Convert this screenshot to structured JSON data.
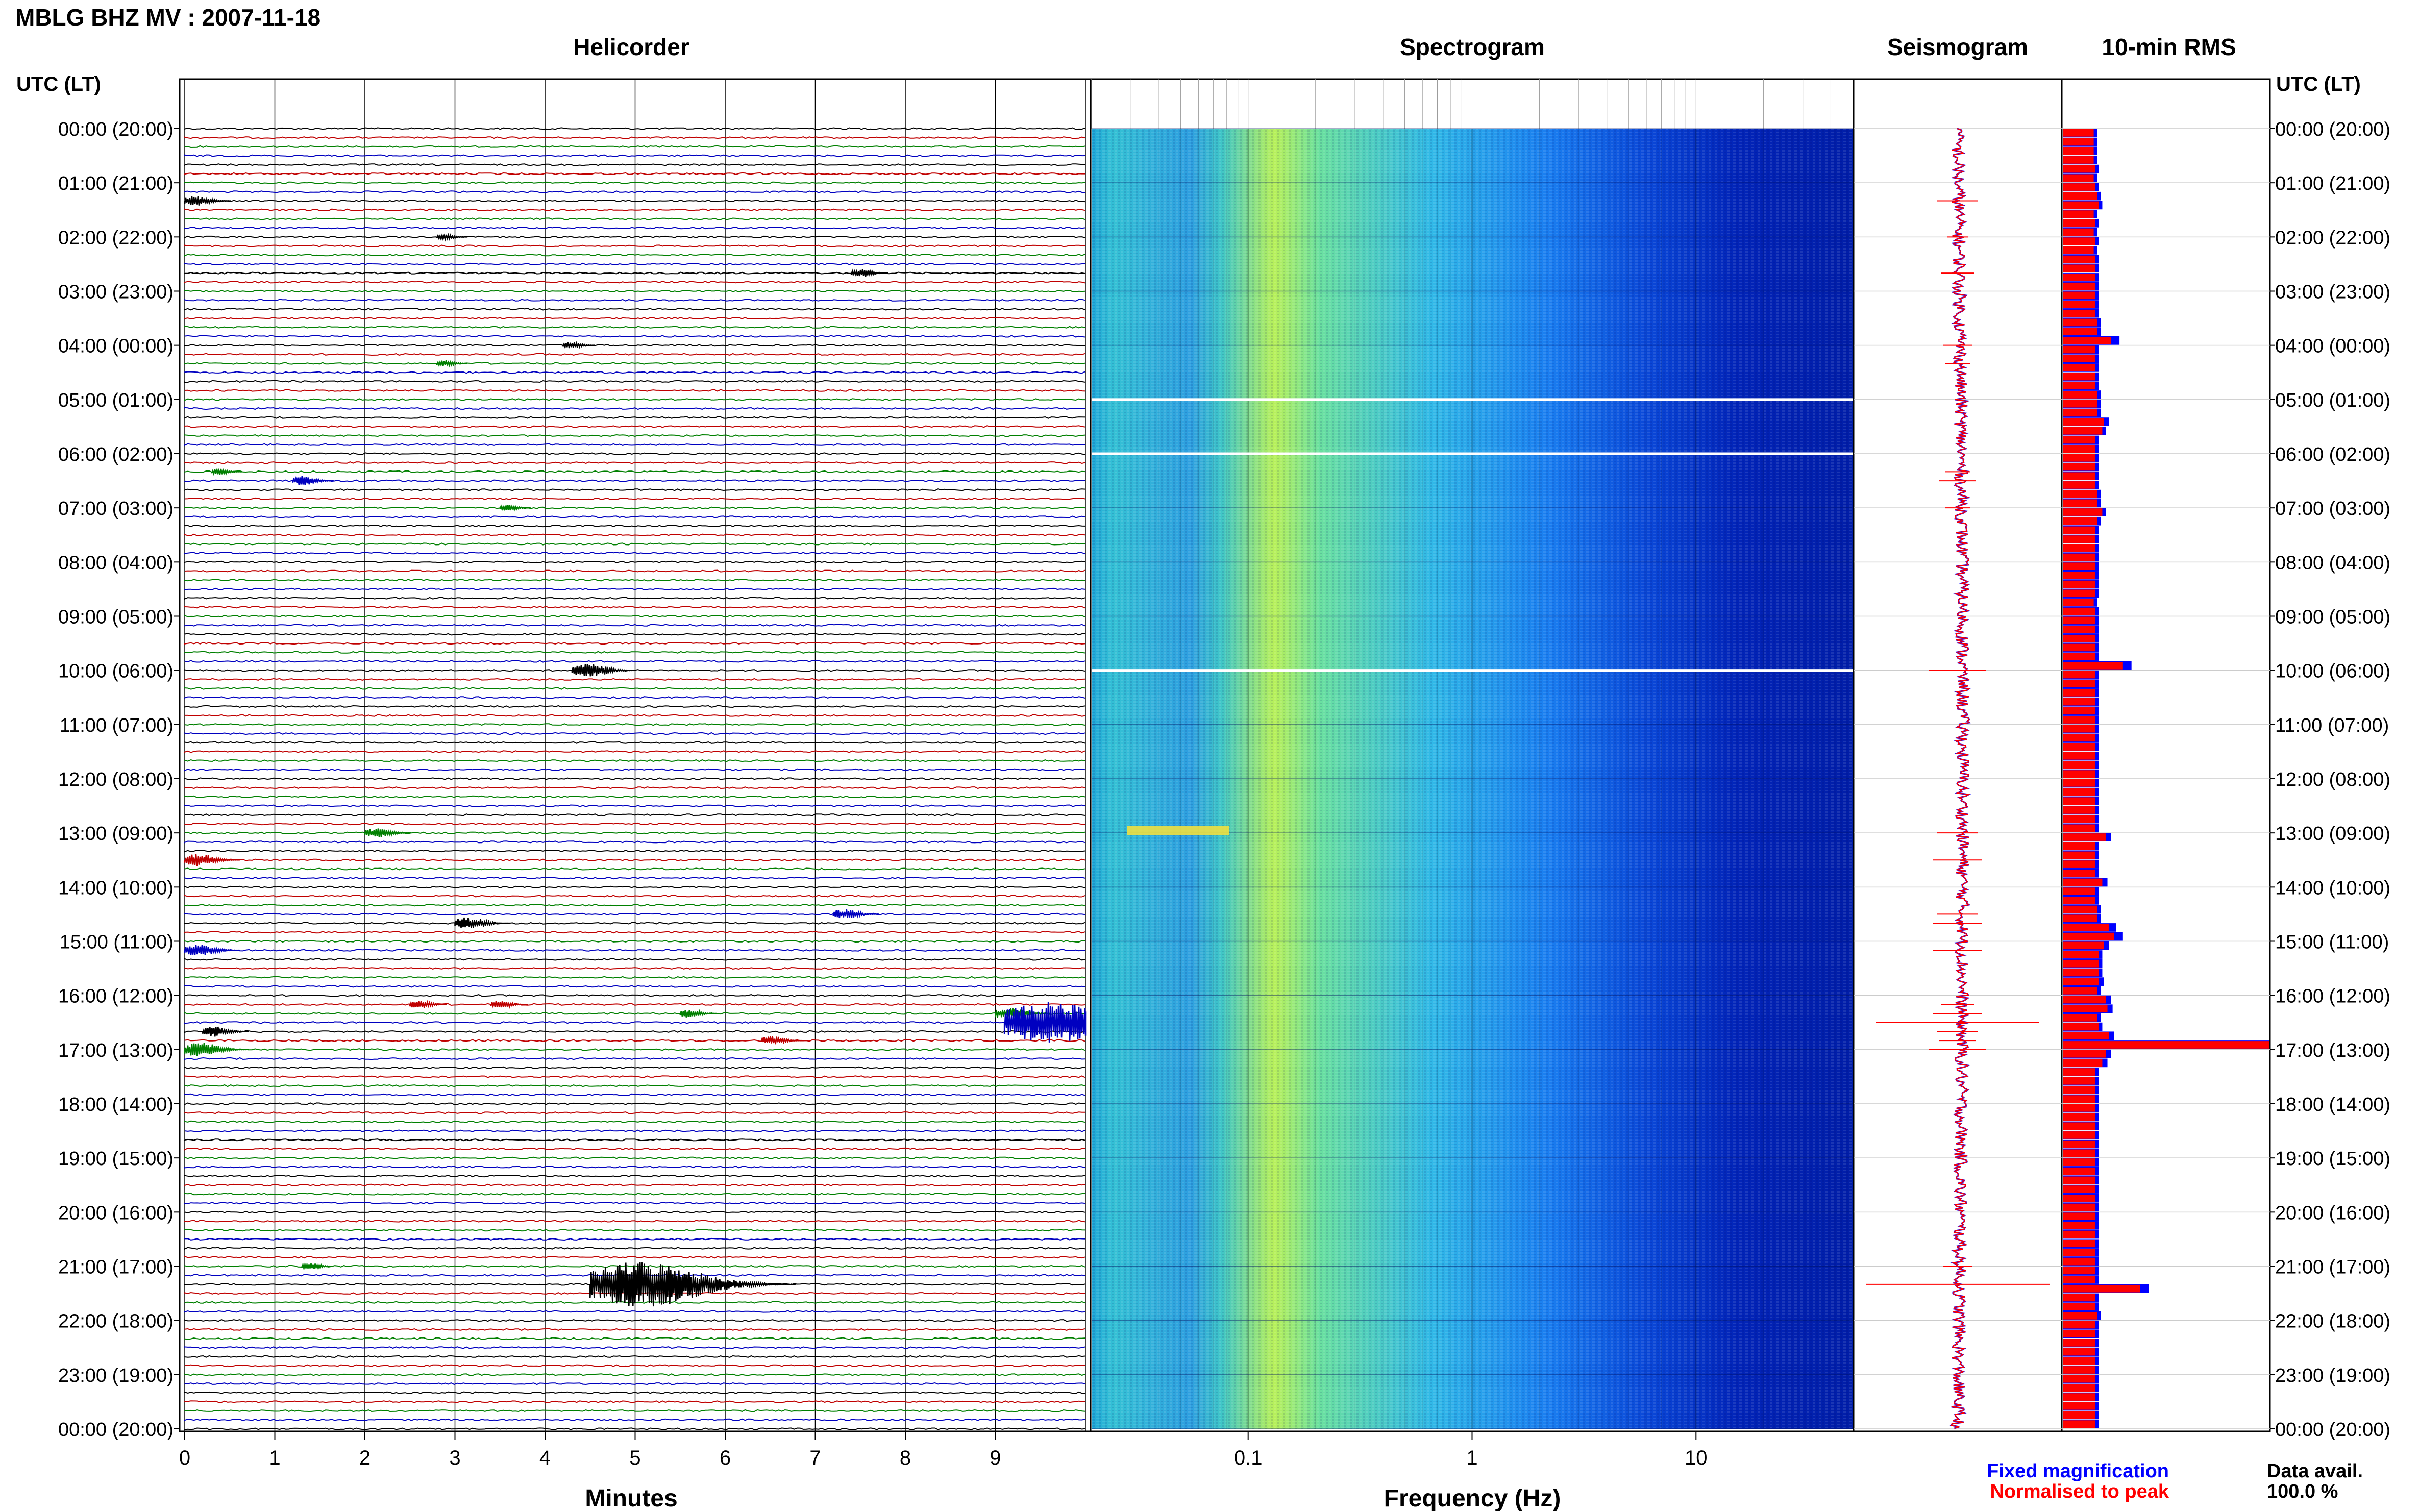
{
  "title": "MBLG BHZ MV : 2007-11-18",
  "panels": {
    "helicorder": "Helicorder",
    "spectrogram": "Spectrogram",
    "seismogram": "Seismogram",
    "rms": "10-min RMS"
  },
  "axis_labels": {
    "time_header_left": "UTC (LT)",
    "time_header_right": "UTC (LT)",
    "minutes": "Minutes",
    "frequency": "Frequency (Hz)"
  },
  "legend": {
    "fixed": "Fixed magnification",
    "normalised": "Normalised to peak",
    "fixed_color": "#0000ff",
    "normalised_color": "#ff0000"
  },
  "data_avail": {
    "label": "Data avail.",
    "value": "100.0 %"
  },
  "chart_data": {
    "type": "helicorder",
    "time_labels": [
      "00:00 (20:00)",
      "01:00 (21:00)",
      "02:00 (22:00)",
      "03:00 (23:00)",
      "04:00 (00:00)",
      "05:00 (01:00)",
      "06:00 (02:00)",
      "07:00 (03:00)",
      "08:00 (04:00)",
      "09:00 (05:00)",
      "10:00 (06:00)",
      "11:00 (07:00)",
      "12:00 (08:00)",
      "13:00 (09:00)",
      "14:00 (10:00)",
      "15:00 (11:00)",
      "16:00 (12:00)",
      "17:00 (13:00)",
      "18:00 (14:00)",
      "19:00 (15:00)",
      "20:00 (16:00)",
      "21:00 (17:00)",
      "22:00 (18:00)",
      "23:00 (19:00)",
      "00:00 (20:00)"
    ],
    "minute_ticks": [
      "0",
      "1",
      "2",
      "3",
      "4",
      "5",
      "6",
      "7",
      "8",
      "9"
    ],
    "freq_ticks": [
      "0.1",
      "1",
      "10"
    ],
    "freq_range_hz": [
      0.02,
      50
    ],
    "trace_colors": [
      "#000000",
      "#c00000",
      "#008000",
      "#0000c0"
    ],
    "events": [
      {
        "row": 8,
        "minute": 0.0,
        "amp": 10
      },
      {
        "row": 12,
        "minute": 2.8,
        "amp": 5
      },
      {
        "row": 16,
        "minute": 7.4,
        "amp": 8
      },
      {
        "row": 24,
        "minute": 4.2,
        "amp": 7
      },
      {
        "row": 26,
        "minute": 2.8,
        "amp": 6
      },
      {
        "row": 38,
        "minute": 0.3,
        "amp": 6
      },
      {
        "row": 39,
        "minute": 1.2,
        "amp": 9
      },
      {
        "row": 42,
        "minute": 3.5,
        "amp": 6
      },
      {
        "row": 60,
        "minute": 4.3,
        "amp": 14
      },
      {
        "row": 78,
        "minute": 2.0,
        "amp": 10
      },
      {
        "row": 81,
        "minute": 0.0,
        "amp": 12
      },
      {
        "row": 87,
        "minute": 7.2,
        "amp": 10
      },
      {
        "row": 88,
        "minute": 3.0,
        "amp": 12
      },
      {
        "row": 91,
        "minute": 0.0,
        "amp": 12
      },
      {
        "row": 97,
        "minute": 2.5,
        "amp": 8
      },
      {
        "row": 97,
        "minute": 3.4,
        "amp": 8
      },
      {
        "row": 98,
        "minute": 5.5,
        "amp": 8
      },
      {
        "row": 98,
        "minute": 9.0,
        "amp": 12
      },
      {
        "row": 100,
        "minute": 0.2,
        "amp": 10
      },
      {
        "row": 101,
        "minute": 6.4,
        "amp": 9
      },
      {
        "row": 99,
        "minute": 9.1,
        "amp": 40
      },
      {
        "row": 102,
        "minute": 0.0,
        "amp": 14
      },
      {
        "row": 126,
        "minute": 1.3,
        "amp": 7
      },
      {
        "row": 128,
        "minute": 4.5,
        "amp": 45
      }
    ],
    "rms_fixed": [
      20,
      20,
      20,
      20,
      21,
      20,
      21,
      22,
      23,
      20,
      21,
      20,
      21,
      20,
      21,
      21,
      21,
      21,
      21,
      21,
      21,
      22,
      22,
      33,
      21,
      21,
      21,
      21,
      21,
      22,
      22,
      22,
      27,
      25,
      21,
      21,
      21,
      21,
      21,
      21,
      22,
      22,
      25,
      22,
      21,
      21,
      21,
      21,
      21,
      21,
      21,
      21,
      20,
      21,
      21,
      21,
      21,
      21,
      21,
      40,
      21,
      21,
      21,
      21,
      21,
      21,
      21,
      21,
      21,
      21,
      21,
      21,
      21,
      21,
      21,
      21,
      21,
      21,
      28,
      21,
      21,
      21,
      21,
      26,
      21,
      21,
      22,
      22,
      31,
      35,
      27,
      23,
      23,
      23,
      24,
      22,
      28,
      29,
      22,
      23,
      30,
      120,
      28,
      26,
      21,
      21,
      21,
      21,
      21,
      21,
      21,
      21,
      21,
      21,
      21,
      21,
      21,
      21,
      21,
      21,
      21,
      21,
      21,
      21,
      21,
      21,
      21,
      21,
      50,
      21,
      21,
      22,
      21,
      21,
      21,
      21,
      21,
      21,
      21,
      21,
      21,
      21,
      21,
      21
    ],
    "rms_norm": [
      18,
      18,
      18,
      18,
      19,
      18,
      19,
      20,
      21,
      18,
      19,
      18,
      19,
      18,
      19,
      19,
      19,
      19,
      19,
      19,
      19,
      20,
      20,
      28,
      19,
      19,
      19,
      19,
      19,
      20,
      20,
      20,
      24,
      23,
      19,
      19,
      19,
      19,
      19,
      19,
      20,
      20,
      23,
      20,
      19,
      19,
      19,
      19,
      19,
      19,
      19,
      19,
      18,
      19,
      19,
      19,
      19,
      19,
      19,
      35,
      19,
      19,
      19,
      19,
      19,
      19,
      19,
      19,
      19,
      19,
      19,
      19,
      19,
      19,
      19,
      19,
      19,
      19,
      25,
      19,
      19,
      19,
      19,
      23,
      19,
      19,
      20,
      20,
      27,
      30,
      24,
      21,
      21,
      21,
      21,
      20,
      25,
      26,
      20,
      21,
      27,
      120,
      25,
      23,
      19,
      19,
      19,
      19,
      19,
      19,
      19,
      19,
      19,
      19,
      19,
      19,
      19,
      19,
      19,
      19,
      19,
      19,
      19,
      19,
      19,
      19,
      19,
      19,
      45,
      19,
      19,
      20,
      19,
      19,
      19,
      19,
      19,
      19,
      19,
      19,
      19,
      19,
      19,
      19
    ]
  }
}
